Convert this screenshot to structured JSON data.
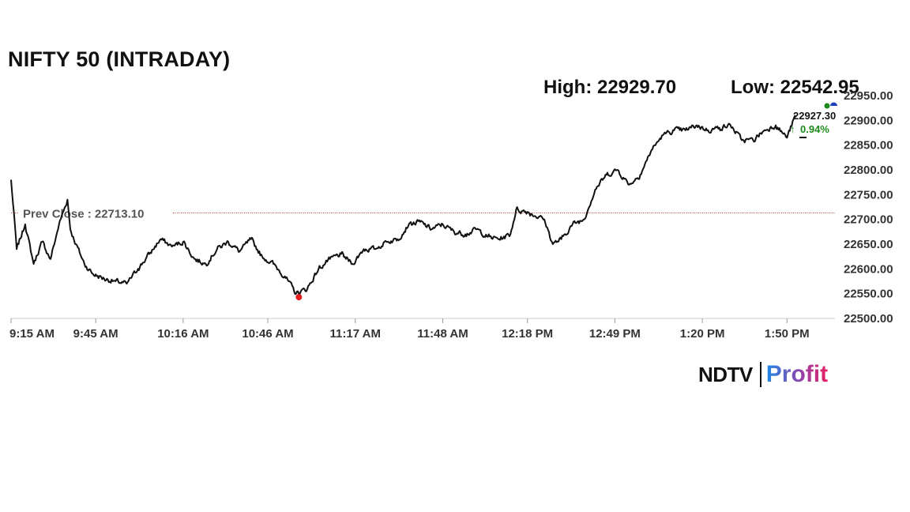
{
  "header": {
    "title": "NIFTY 50 (INTRADAY)",
    "high_label": "High: 22929.70",
    "low_label": "Low: 22542.95"
  },
  "logo": {
    "brand": "NDTV",
    "product": "Profit"
  },
  "colors": {
    "line": "#111111",
    "prev_close_line": "#c0392b",
    "low_marker": "#e31b1b",
    "up_green": "#1a8a1a",
    "marker_blue": "#1f3fbf",
    "axis": "#cccccc"
  },
  "chart_data": {
    "type": "line",
    "title": "NIFTY 50 (INTRADAY)",
    "xlabel": "",
    "ylabel": "",
    "x_ticks": [
      "9:15 AM",
      "9:45 AM",
      "10:16 AM",
      "10:46 AM",
      "11:17 AM",
      "11:48 AM",
      "12:18 PM",
      "12:49 PM",
      "1:20 PM",
      "1:50 PM"
    ],
    "y_ticks": [
      "22500.00",
      "22550.00",
      "22600.00",
      "22650.00",
      "22700.00",
      "22750.00",
      "22800.00",
      "22850.00",
      "22900.00",
      "22950.00"
    ],
    "ylim": [
      22500,
      22950
    ],
    "prev_close": 22713.1,
    "prev_close_label": "Prev Close : 22713.10",
    "high": 22929.7,
    "low": 22542.95,
    "last_value_label": "22927.30",
    "change_label": "0.94%",
    "grid": false,
    "series": [
      {
        "x": [
          "9:15",
          "9:17",
          "9:20",
          "9:23",
          "9:26",
          "9:29",
          "9:32",
          "9:35",
          "9:36",
          "9:38",
          "9:41",
          "9:44",
          "9:48",
          "9:52",
          "9:56",
          "10:00",
          "10:04",
          "10:08",
          "10:12",
          "10:16",
          "10:20",
          "10:24",
          "10:28",
          "10:32",
          "10:36",
          "10:40",
          "10:44",
          "10:48",
          "10:52",
          "10:56",
          "11:00",
          "11:04",
          "11:08",
          "11:12",
          "11:16",
          "11:20",
          "11:24",
          "11:28",
          "11:32",
          "11:36",
          "11:40",
          "11:44",
          "11:48",
          "11:52",
          "11:56",
          "12:00",
          "12:04",
          "12:08",
          "12:12",
          "12:14",
          "12:18",
          "12:22",
          "12:24",
          "12:27",
          "12:30",
          "12:34",
          "12:38",
          "12:42",
          "12:46",
          "12:50",
          "12:54",
          "12:58",
          "13:02",
          "13:06",
          "13:10",
          "13:14",
          "13:18",
          "13:22",
          "13:26",
          "13:30",
          "13:34",
          "13:38",
          "13:42",
          "13:46",
          "13:50",
          "13:53"
        ],
        "y": [
          22780,
          22640,
          22690,
          22610,
          22655,
          22620,
          22690,
          22740,
          22680,
          22650,
          22610,
          22590,
          22580,
          22575,
          22570,
          22600,
          22630,
          22660,
          22645,
          22655,
          22620,
          22610,
          22640,
          22655,
          22635,
          22660,
          22625,
          22610,
          22585,
          22550,
          22560,
          22600,
          22620,
          22630,
          22610,
          22640,
          22640,
          22655,
          22660,
          22690,
          22695,
          22680,
          22690,
          22675,
          22670,
          22680,
          22665,
          22660,
          22670,
          22720,
          22715,
          22705,
          22700,
          22650,
          22660,
          22690,
          22700,
          22760,
          22790,
          22800,
          22770,
          22790,
          22840,
          22870,
          22880,
          22880,
          22890,
          22880,
          22885,
          22890,
          22860,
          22860,
          22880,
          22890,
          22865,
          22910
        ]
      }
    ]
  }
}
